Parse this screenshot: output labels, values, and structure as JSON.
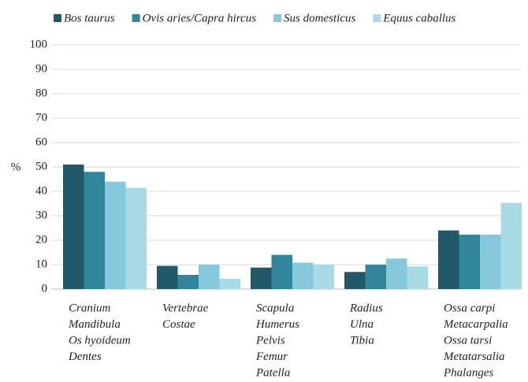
{
  "chart_data": {
    "type": "bar",
    "y_label": "%",
    "categories": [
      [
        "Cranium",
        "Mandibula",
        "Os hyoideum",
        "Dentes"
      ],
      [
        "Vertebrae",
        "Costae"
      ],
      [
        "Scapula",
        "Humerus",
        "Pelvis",
        "Femur",
        "Patella"
      ],
      [
        "Radius",
        "Ulna",
        "Tibia"
      ],
      [
        "Ossa carpi",
        "Metacarpalia",
        "Ossa tarsi",
        "Metatarsalia",
        "Phalanges"
      ]
    ],
    "series": [
      {
        "name": "Bos taurus",
        "color": "#215968",
        "values": [
          51,
          9.5,
          8.8,
          7,
          24
        ]
      },
      {
        "name": "Ovis aries/Capra hircus",
        "color": "#31869b",
        "values": [
          48,
          5.8,
          14,
          10,
          22.3
        ]
      },
      {
        "name": "Sus domesticus",
        "color": "#86c9dc",
        "values": [
          44,
          10,
          10.8,
          12.5,
          22.3
        ]
      },
      {
        "name": "Equus caballus",
        "color": "#a8dbe6",
        "values": [
          41.5,
          4.2,
          10,
          9.3,
          35.3
        ]
      }
    ],
    "ylim": [
      0,
      100
    ],
    "yticks": [
      0,
      10,
      20,
      30,
      40,
      50,
      60,
      70,
      80,
      90,
      100
    ],
    "grid": true,
    "legend": "top"
  }
}
